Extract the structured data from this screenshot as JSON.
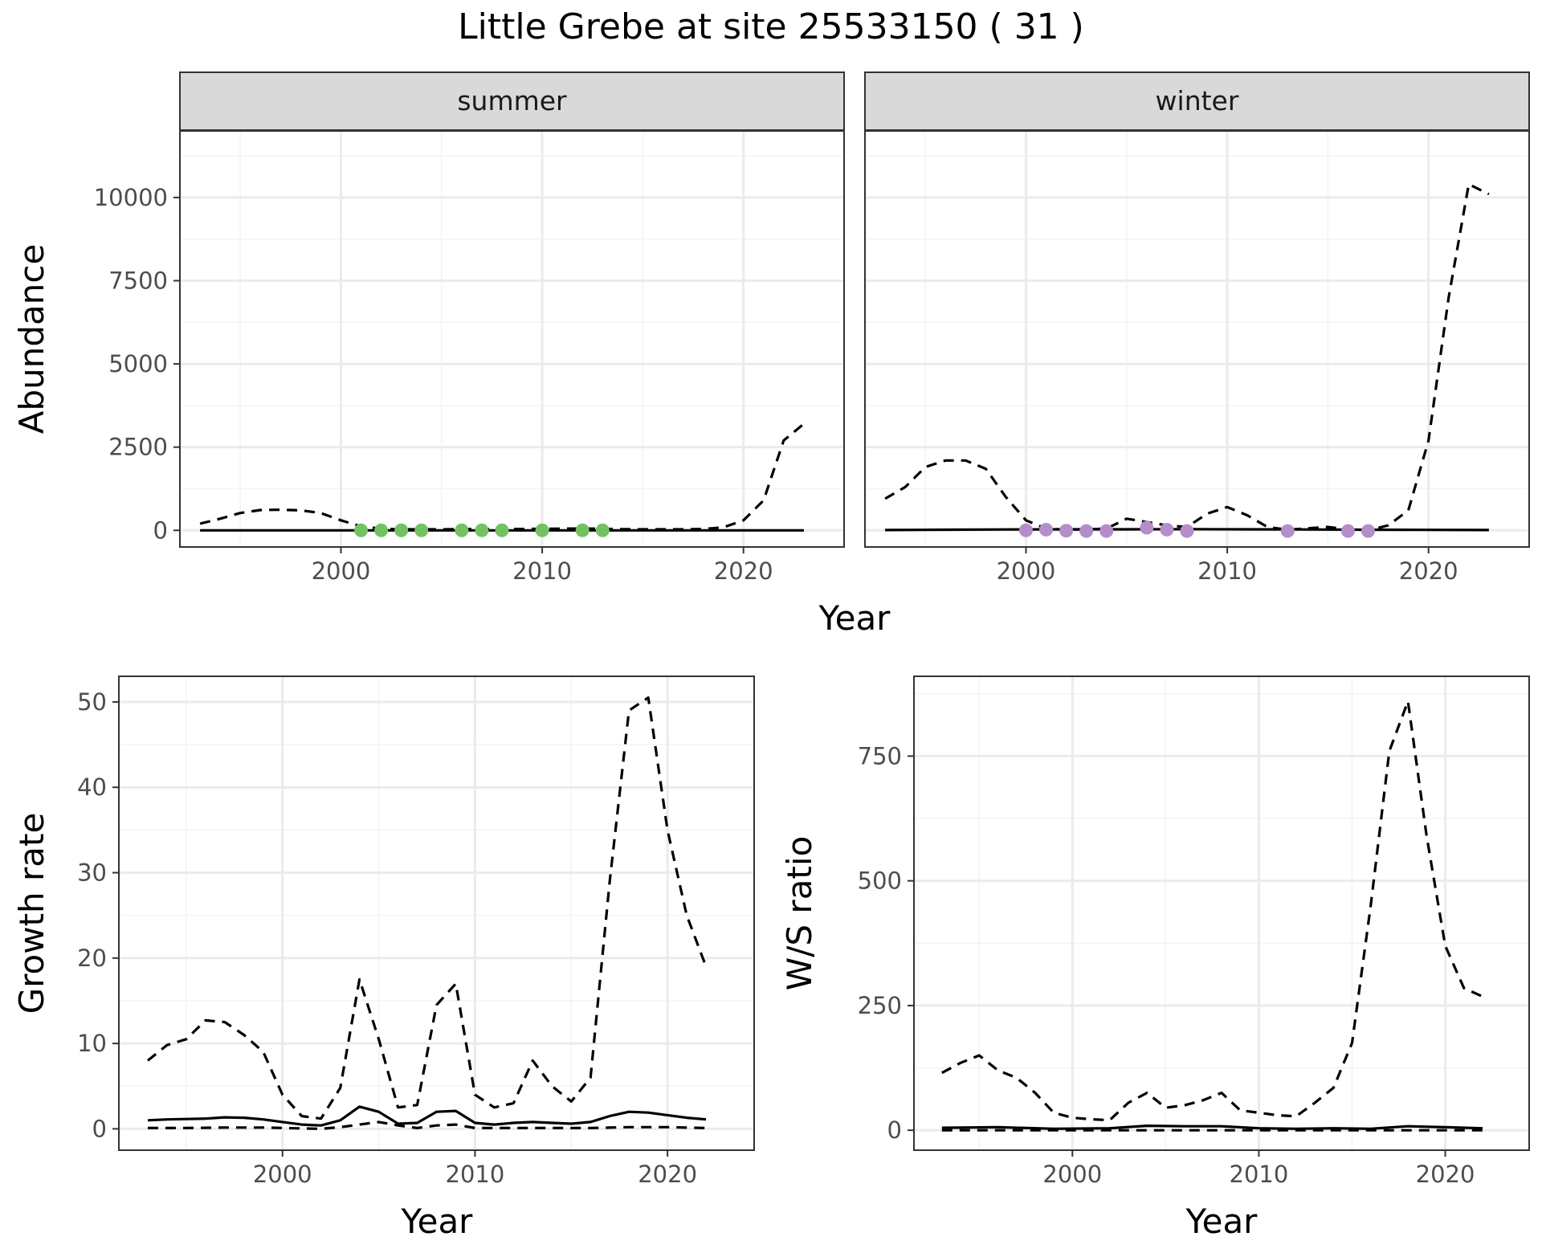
{
  "title": "Little Grebe at site 25533150 ( 31 )",
  "chart_data": [
    {
      "type": "line",
      "facets": [
        "summer",
        "winter"
      ],
      "xlabel": "Year",
      "ylabel": "Abundance",
      "xlim": [
        1992,
        2025
      ],
      "ylim": [
        -500,
        12000
      ],
      "xticks": [
        2000,
        2010,
        2020
      ],
      "yticks": [
        0,
        2500,
        5000,
        7500,
        10000
      ],
      "grid": true,
      "panels": [
        {
          "name": "summer",
          "point_color": "#74c163",
          "series": [
            {
              "name": "",
              "style": "solid",
              "x": [
                1993,
                1995,
                1997,
                1999,
                2001,
                2003,
                2005,
                2007,
                2009,
                2011,
                2013,
                2015,
                2017,
                2019,
                2021,
                2023
              ],
              "y": [
                0,
                0,
                0,
                0,
                0,
                0,
                0,
                0,
                0,
                0,
                0,
                0,
                0,
                0,
                0,
                0
              ]
            },
            {
              "name": "",
              "style": "dashed",
              "x": [
                1993,
                1994,
                1995,
                1996,
                1997,
                1998,
                1999,
                2000,
                2001,
                2002,
                2003,
                2004,
                2005,
                2006,
                2007,
                2008,
                2009,
                2010,
                2011,
                2012,
                2013,
                2014,
                2015,
                2016,
                2017,
                2018,
                2019,
                2020,
                2021,
                2022,
                2023
              ],
              "y": [
                200,
                350,
                520,
                610,
                620,
                600,
                520,
                300,
                120,
                50,
                30,
                30,
                30,
                35,
                40,
                40,
                40,
                45,
                50,
                55,
                45,
                35,
                30,
                30,
                30,
                40,
                90,
                300,
                900,
                2700,
                3200
              ]
            }
          ],
          "points": {
            "x": [
              2001,
              2002,
              2003,
              2004,
              2006,
              2007,
              2008,
              2010,
              2012,
              2013
            ],
            "y": [
              0,
              0,
              0,
              0,
              0,
              0,
              0,
              0,
              0,
              0
            ]
          }
        },
        {
          "name": "winter",
          "point_color": "#b48ec8",
          "series": [
            {
              "name": "",
              "style": "solid",
              "x": [
                1993,
                1996,
                1999,
                2002,
                2005,
                2008,
                2011,
                2014,
                2017,
                2020,
                2023
              ],
              "y": [
                10,
                20,
                25,
                30,
                30,
                35,
                30,
                25,
                20,
                15,
                10
              ]
            },
            {
              "name": "",
              "style": "dashed",
              "x": [
                1993,
                1994,
                1995,
                1996,
                1997,
                1998,
                1999,
                2000,
                2001,
                2002,
                2003,
                2004,
                2005,
                2006,
                2007,
                2008,
                2009,
                2010,
                2011,
                2012,
                2013,
                2014,
                2015,
                2016,
                2017,
                2018,
                2019,
                2020,
                2021,
                2022,
                2023
              ],
              "y": [
                950,
                1300,
                1900,
                2100,
                2100,
                1850,
                1000,
                300,
                50,
                20,
                30,
                50,
                350,
                250,
                150,
                100,
                500,
                700,
                450,
                100,
                20,
                60,
                100,
                30,
                0,
                150,
                600,
                2700,
                7000,
                10400,
                10100
              ]
            }
          ],
          "points": {
            "x": [
              2000,
              2001,
              2002,
              2003,
              2004,
              2006,
              2007,
              2008,
              2013,
              2016,
              2017
            ],
            "y": [
              0,
              20,
              -10,
              -20,
              -20,
              80,
              20,
              -20,
              -20,
              -20,
              -20
            ]
          }
        }
      ]
    },
    {
      "type": "line",
      "xlabel": "Year",
      "ylabel": "Growth rate",
      "xlim": [
        1991.5,
        2024.5
      ],
      "ylim": [
        -2.5,
        53
      ],
      "xticks": [
        2000,
        2010,
        2020
      ],
      "yticks": [
        0,
        10,
        20,
        30,
        40,
        50
      ],
      "grid": true,
      "series": [
        {
          "name": "",
          "style": "solid",
          "x": [
            1993,
            1994,
            1995,
            1996,
            1997,
            1998,
            1999,
            2000,
            2001,
            2002,
            2003,
            2004,
            2005,
            2006,
            2007,
            2008,
            2009,
            2010,
            2011,
            2012,
            2013,
            2014,
            2015,
            2016,
            2017,
            2018,
            2019,
            2020,
            2021,
            2022
          ],
          "y": [
            1.0,
            1.1,
            1.15,
            1.2,
            1.35,
            1.3,
            1.1,
            0.8,
            0.5,
            0.4,
            1.0,
            2.6,
            2.0,
            0.6,
            0.7,
            2.0,
            2.1,
            0.7,
            0.5,
            0.7,
            0.8,
            0.7,
            0.6,
            0.8,
            1.5,
            2.0,
            1.9,
            1.6,
            1.3,
            1.1
          ]
        },
        {
          "name": "",
          "style": "dashed",
          "x": [
            1993,
            1994,
            1995,
            1996,
            1997,
            1998,
            1999,
            2000,
            2001,
            2002,
            2003,
            2004,
            2005,
            2006,
            2007,
            2008,
            2009,
            2010,
            2011,
            2012,
            2013,
            2014,
            2015,
            2016,
            2017,
            2018,
            2019,
            2020,
            2021,
            2022
          ],
          "y": [
            8,
            9.8,
            10.5,
            12.7,
            12.5,
            11,
            9,
            4,
            1.5,
            1.2,
            4.8,
            17.5,
            10.5,
            2.5,
            2.8,
            14.5,
            17,
            4,
            2.5,
            3,
            8,
            5,
            3.2,
            6,
            29,
            49,
            50.5,
            35,
            25,
            19
          ]
        },
        {
          "name": "",
          "style": "dashed",
          "x": [
            1993,
            1995,
            1997,
            1999,
            2001,
            2002,
            2003,
            2004,
            2005,
            2006,
            2007,
            2008,
            2009,
            2010,
            2012,
            2014,
            2016,
            2018,
            2020,
            2022
          ],
          "y": [
            0.1,
            0.1,
            0.15,
            0.15,
            0.05,
            0.0,
            0.2,
            0.5,
            0.8,
            0.4,
            0.1,
            0.4,
            0.5,
            0.1,
            0.1,
            0.1,
            0.1,
            0.2,
            0.2,
            0.1
          ]
        }
      ]
    },
    {
      "type": "line",
      "xlabel": "Year",
      "ylabel": "W/S ratio",
      "xlim": [
        1991.5,
        2024.5
      ],
      "ylim": [
        -40,
        910
      ],
      "xticks": [
        2000,
        2010,
        2020
      ],
      "yticks": [
        0,
        250,
        500,
        750
      ],
      "grid": true,
      "series": [
        {
          "name": "",
          "style": "solid",
          "x": [
            1993,
            1996,
            1999,
            2002,
            2004,
            2006,
            2008,
            2010,
            2012,
            2014,
            2016,
            2018,
            2020,
            2022
          ],
          "y": [
            5,
            6,
            3,
            4,
            9,
            8,
            8,
            4,
            3,
            4,
            3,
            8,
            6,
            4
          ]
        },
        {
          "name": "",
          "style": "dashed",
          "x": [
            1993,
            1994,
            1995,
            1996,
            1997,
            1998,
            1999,
            2000,
            2001,
            2002,
            2003,
            2004,
            2005,
            2006,
            2007,
            2008,
            2009,
            2010,
            2011,
            2012,
            2013,
            2014,
            2015,
            2016,
            2017,
            2018,
            2019,
            2020,
            2021,
            2022
          ],
          "y": [
            115,
            135,
            150,
            120,
            105,
            75,
            35,
            25,
            22,
            20,
            55,
            75,
            45,
            50,
            60,
            75,
            40,
            35,
            30,
            28,
            55,
            85,
            175,
            450,
            760,
            860,
            590,
            370,
            285,
            268
          ]
        },
        {
          "name": "",
          "style": "dashed",
          "x": [
            1993,
            1998,
            2003,
            2008,
            2013,
            2018,
            2022
          ],
          "y": [
            0,
            0,
            0,
            0,
            0,
            0,
            0
          ]
        }
      ]
    }
  ],
  "colors": {
    "strip_bg": "#d9d9d9",
    "grid_major": "#ebebeb",
    "grid_minor": "#f3f3f3",
    "line": "#000000"
  }
}
